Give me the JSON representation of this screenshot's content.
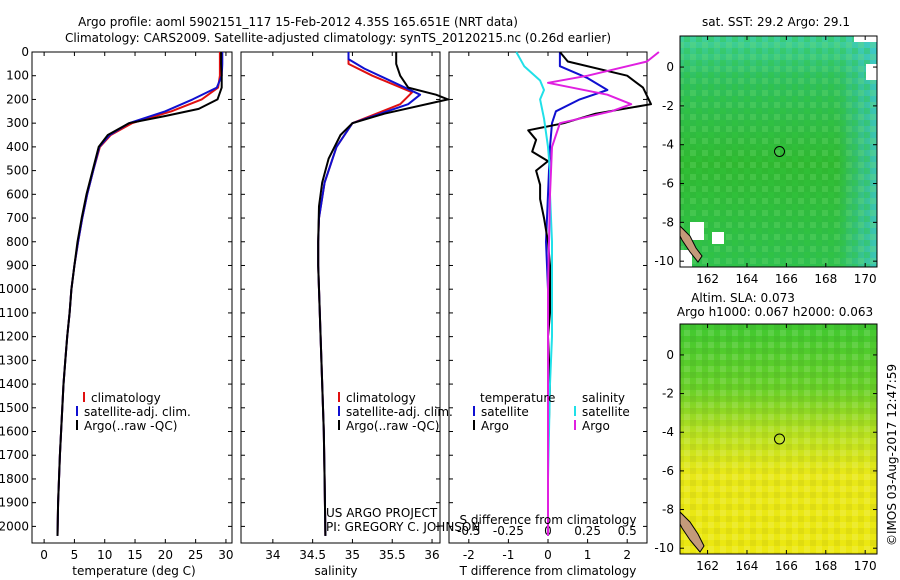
{
  "header": {
    "title_line1": "Argo profile: aoml 5902151_117 15-Feb-2012 4.35S 165.651E (NRT data)",
    "title_line2": "Climatology: CARS2009. Satellite-adjusted climatology: synTS_20120215.nc (0.26d earlier)"
  },
  "colors": {
    "climatology": "#e01010",
    "satellite": "#1010d0",
    "argo": "#000000",
    "salinity_satellite": "#20e0e8",
    "salinity_argo": "#e020e0"
  },
  "chart_data": [
    {
      "type": "line",
      "id": "temperature",
      "xlabel": "temperature (deg C)",
      "ylabel": "",
      "xlim": [
        -2,
        31
      ],
      "ylim": [
        2070,
        0
      ],
      "xticks": [
        0,
        5,
        10,
        15,
        20,
        25,
        30
      ],
      "yticks": [
        0,
        100,
        200,
        300,
        400,
        500,
        600,
        700,
        800,
        900,
        1000,
        1100,
        1200,
        1300,
        1400,
        1500,
        1600,
        1700,
        1800,
        1900,
        2000
      ],
      "legend": [
        "climatology",
        "satellite-adj. clim.",
        "Argo(..raw -QC)"
      ],
      "series": [
        {
          "name": "climatology",
          "color": "#e01010",
          "x": [
            29.0,
            29.0,
            29.0,
            28.7,
            26.0,
            21.0,
            14.5,
            11.0,
            9.2,
            8.1,
            7.1,
            6.3,
            5.6,
            5.0,
            4.5,
            4.2,
            3.8,
            3.5,
            3.2,
            3.0,
            2.8,
            2.6,
            2.45,
            2.3,
            2.2
          ],
          "y": [
            0,
            50,
            100,
            150,
            200,
            250,
            300,
            350,
            400,
            500,
            600,
            700,
            800,
            900,
            1000,
            1100,
            1200,
            1300,
            1400,
            1500,
            1600,
            1700,
            1800,
            1900,
            2040
          ]
        },
        {
          "name": "satellite-adj. clim.",
          "color": "#1010d0",
          "x": [
            29.4,
            29.4,
            29.3,
            28.5,
            24.5,
            20.0,
            14.0,
            10.8,
            9.1,
            8.1,
            7.1,
            6.3,
            5.6,
            5.0,
            4.5,
            4.2,
            3.8,
            3.5,
            3.2,
            3.0,
            2.8,
            2.6,
            2.45,
            2.3,
            2.2
          ],
          "y": [
            0,
            50,
            100,
            150,
            200,
            250,
            300,
            350,
            400,
            500,
            600,
            700,
            800,
            900,
            1000,
            1100,
            1200,
            1300,
            1400,
            1500,
            1600,
            1700,
            1800,
            1900,
            2040
          ]
        },
        {
          "name": "Argo(..raw -QC)",
          "color": "#000000",
          "x": [
            29.2,
            29.2,
            29.3,
            29.3,
            28.6,
            25.5,
            20.0,
            14.0,
            10.5,
            9.0,
            8.0,
            7.0,
            6.2,
            5.5,
            5.0,
            4.5,
            4.2,
            3.8,
            3.5,
            3.2,
            3.0,
            2.8,
            2.6,
            2.45,
            2.3,
            2.2
          ],
          "y": [
            0,
            50,
            100,
            150,
            200,
            240,
            270,
            300,
            350,
            400,
            500,
            600,
            700,
            800,
            900,
            1000,
            1100,
            1200,
            1300,
            1400,
            1500,
            1600,
            1700,
            1800,
            1900,
            2040
          ]
        }
      ]
    },
    {
      "type": "line",
      "id": "salinity",
      "xlabel": "salinity",
      "ylabel": "",
      "xlim": [
        33.6,
        36.1
      ],
      "ylim": [
        2070,
        0
      ],
      "xticks": [
        34,
        34.5,
        35,
        35.5,
        36
      ],
      "legend": [
        "climatology",
        "satellite-adj. clim.",
        "Argo(..raw -QC)"
      ],
      "annotations": [
        "US ARGO PROJECT",
        "PI: GREGORY C. JOHNSON"
      ],
      "series": [
        {
          "name": "climatology",
          "color": "#e01010",
          "x": [
            34.95,
            34.95,
            35.25,
            35.75,
            35.6,
            35.0,
            34.8,
            34.65,
            34.58,
            34.57,
            34.57,
            34.58,
            34.6,
            34.62,
            34.64,
            34.65,
            34.66
          ],
          "y": [
            0,
            50,
            100,
            170,
            220,
            300,
            400,
            550,
            700,
            800,
            900,
            1000,
            1200,
            1400,
            1600,
            1800,
            2040
          ]
        },
        {
          "name": "satellite-adj. clim.",
          "color": "#1010d0",
          "x": [
            34.95,
            34.95,
            35.15,
            35.85,
            35.7,
            35.0,
            34.8,
            34.65,
            34.58,
            34.57,
            34.57,
            34.58,
            34.6,
            34.62,
            34.64,
            34.65,
            34.66
          ],
          "y": [
            0,
            30,
            70,
            180,
            220,
            300,
            400,
            550,
            700,
            800,
            900,
            1000,
            1200,
            1400,
            1600,
            1800,
            2040
          ]
        },
        {
          "name": "Argo(..raw -QC)",
          "color": "#000000",
          "x": [
            35.55,
            35.55,
            35.6,
            35.7,
            36.05,
            36.2,
            35.4,
            35.0,
            34.85,
            34.7,
            34.62,
            34.58,
            34.57,
            34.57,
            34.58,
            34.6,
            34.62,
            34.64,
            34.65,
            34.66
          ],
          "y": [
            0,
            50,
            100,
            150,
            180,
            200,
            260,
            300,
            350,
            450,
            550,
            650,
            800,
            900,
            1000,
            1200,
            1400,
            1600,
            1800,
            2040
          ]
        }
      ]
    },
    {
      "type": "line",
      "id": "difference",
      "xlabel": "T difference from climatology",
      "xlabel_top": "S difference from climatology",
      "xlim": [
        -2.5,
        2.5
      ],
      "ylim": [
        2070,
        0
      ],
      "xticks_T": [
        "-2",
        "-1",
        "0",
        "1",
        "2"
      ],
      "xticks_S": [
        "-0.5",
        "-0.25",
        "0",
        "0.25",
        "0.5"
      ],
      "legend_temperature": [
        "temperature",
        "satellite",
        "Argo"
      ],
      "legend_salinity": [
        "salinity",
        "satellite",
        "Argo"
      ],
      "series": [
        {
          "name": "T satellite",
          "color": "#1010d0",
          "x": [
            0.3,
            0.3,
            1.0,
            1.5,
            0.8,
            0.2,
            0.1,
            0.05,
            0.0,
            -0.05,
            0.0,
            0.0,
            0.0,
            0.0
          ],
          "y": [
            0,
            60,
            110,
            160,
            200,
            250,
            300,
            400,
            600,
            800,
            1000,
            1400,
            1800,
            2040
          ]
        },
        {
          "name": "T Argo",
          "color": "#000000",
          "x": [
            0.3,
            0.5,
            2.0,
            2.4,
            2.6,
            1.2,
            0.4,
            -0.5,
            -0.3,
            -0.4,
            0.0,
            -0.3,
            -0.2,
            -0.2,
            -0.1,
            0.0,
            0.05,
            0.05,
            0.05,
            0.0,
            0.05,
            0.0,
            0.0
          ],
          "y": [
            0,
            40,
            100,
            150,
            220,
            260,
            300,
            330,
            370,
            420,
            460,
            500,
            560,
            620,
            700,
            800,
            900,
            1000,
            1100,
            1200,
            1400,
            1700,
            2040
          ]
        },
        {
          "name": "S satellite",
          "color": "#20e0e8",
          "x": [
            -0.8,
            -0.6,
            -0.2,
            -0.1,
            -0.2,
            -0.1,
            0.0,
            0.05,
            0.05,
            0.1,
            0.1,
            0.1,
            0.05,
            0.0,
            0.0
          ],
          "y": [
            0,
            60,
            120,
            160,
            200,
            280,
            400,
            500,
            600,
            800,
            1000,
            1200,
            1400,
            1800,
            2040
          ]
        },
        {
          "name": "S Argo",
          "color": "#e020e0",
          "x": [
            2.8,
            2.5,
            1.0,
            0.0,
            1.5,
            2.1,
            1.6,
            0.3,
            0.1,
            0.05,
            0.0,
            0.0
          ],
          "y": [
            0,
            40,
            100,
            130,
            180,
            220,
            250,
            300,
            400,
            600,
            1000,
            2040
          ]
        }
      ]
    },
    {
      "type": "heatmap",
      "id": "sst-map",
      "title": "sat. SST: 29.2 Argo: 29.1",
      "xlim": [
        160.6,
        170.6
      ],
      "ylim": [
        -10.3,
        1.6
      ],
      "xticks": [
        162,
        164,
        166,
        168,
        170
      ],
      "yticks": [
        0,
        -2,
        -4,
        -6,
        -8,
        -10
      ],
      "marker": {
        "lon": 165.651,
        "lat": -4.35
      }
    },
    {
      "type": "heatmap",
      "id": "sla-map",
      "title": "Altim. SLA: 0.073",
      "subtitle": "Argo h1000: 0.067 h2000: 0.063",
      "xlim": [
        160.6,
        170.6
      ],
      "ylim": [
        -10.3,
        1.6
      ],
      "xticks": [
        162,
        164,
        166,
        168,
        170
      ],
      "yticks": [
        0,
        -2,
        -4,
        -6,
        -8,
        -10
      ],
      "marker": {
        "lon": 165.651,
        "lat": -4.35
      }
    }
  ],
  "footer": {
    "credit": "©IMOS 03-Aug-2017 12:47:59"
  }
}
